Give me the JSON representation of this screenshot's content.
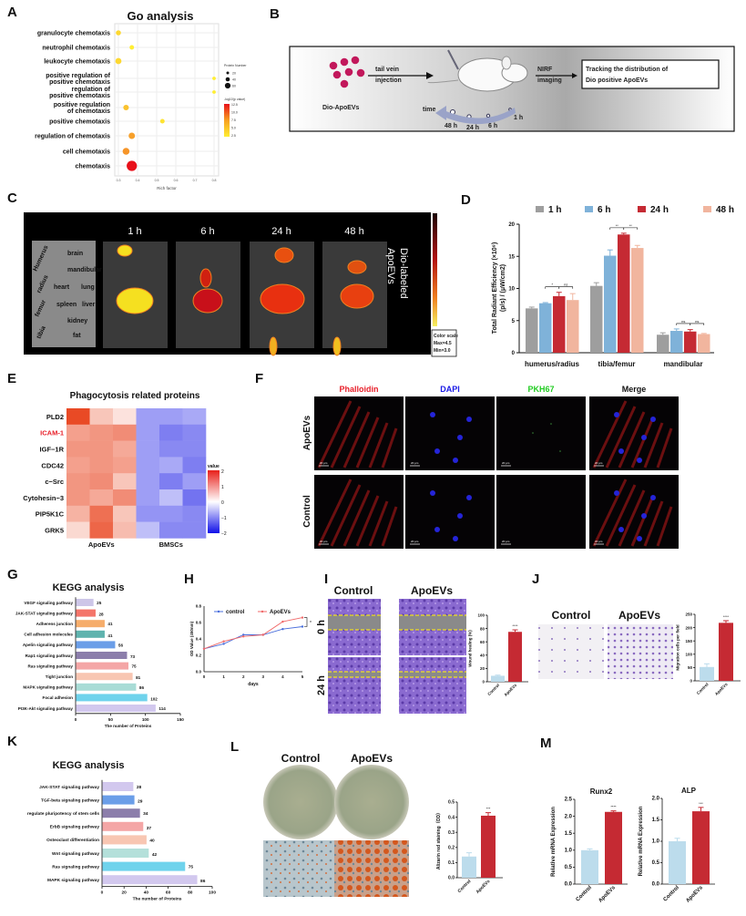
{
  "panels": {
    "A": "A",
    "B": "B",
    "C": "C",
    "D": "D",
    "E": "E",
    "F": "F",
    "G": "G",
    "H": "H",
    "I": "I",
    "J": "J",
    "K": "K",
    "L": "L",
    "M": "M"
  },
  "schematic_b": {
    "tail_vein": "tail vein",
    "injection": "injection",
    "dio_apoevs": "Dio-ApoEVs",
    "nirf": "NIRF",
    "imaging": "imaging",
    "tracking_line1": "Tracking the distribution of",
    "tracking_line2": "Dio positive ApoEVs",
    "time": "time",
    "timepoints": [
      "48 h",
      "24 h",
      "6 h",
      "1 h"
    ],
    "particle_color": "#c2185b"
  },
  "imaging_c": {
    "timepoints": [
      "1 h",
      "6 h",
      "24 h",
      "48 h"
    ],
    "organ_labels": [
      "brain",
      "mandibular",
      "heart",
      "lung",
      "spleen",
      "liver",
      "kidney",
      "fat"
    ],
    "bone_labels": [
      "Humerus",
      "radius",
      "femur",
      "tibia"
    ],
    "side_label_line1": "Dio-labeled",
    "side_label_line2": "ApoEVs",
    "color_scale": {
      "title": "Color scale",
      "max": "Max=4.5",
      "min": "Min=3.0"
    }
  },
  "confocal_f": {
    "columns": [
      {
        "label": "Phalloidin",
        "color": "#e8202a"
      },
      {
        "label": "DAPI",
        "color": "#1a1ae6"
      },
      {
        "label": "PKH67",
        "color": "#22cc22"
      },
      {
        "label": "Merge",
        "color": "#111111"
      }
    ],
    "rows": [
      "ApoEVs",
      "Control"
    ],
    "scale_bar": "20 μm"
  },
  "wound_i": {
    "columns": [
      "Control",
      "ApoEVs"
    ],
    "rows": [
      "0 h",
      "24 h"
    ]
  },
  "transwell_j": {
    "columns": [
      "Control",
      "ApoEVs"
    ]
  },
  "alizarin_l": {
    "columns": [
      "Control",
      "ApoEVs"
    ]
  },
  "chart_data": [
    {
      "id": "A",
      "type": "scatter",
      "title": "Go analysis",
      "xlabel": "Rich factor",
      "xlim": [
        0.3,
        0.8
      ],
      "xticks": [
        "0.3",
        "0.4",
        "0.5",
        "0.6",
        "0.7",
        "0.8"
      ],
      "grid": true,
      "categories": [
        "granulocyte chemotaxis",
        "neutrophil chemotaxis",
        "leukocyte chemotaxis",
        "positive regulation of|positive chemotaxis",
        "regulation of|positive chemotaxis",
        "positive regulation|of chemotaxis",
        "positive chemotaxis",
        "regulation of chemotaxis",
        "cell chemotaxis",
        "chemotaxis"
      ],
      "rich_factor": [
        0.3,
        0.37,
        0.3,
        0.8,
        0.8,
        0.34,
        0.53,
        0.37,
        0.34,
        0.37
      ],
      "protein_number": [
        22,
        18,
        30,
        10,
        10,
        26,
        18,
        32,
        36,
        62
      ],
      "neg_log10_p": [
        3.5,
        2.5,
        3.5,
        2.5,
        2.5,
        4.5,
        3.0,
        6.0,
        6.5,
        12.5
      ],
      "size_legend": {
        "title": "Protein Number",
        "values": [
          "20",
          "40",
          "60"
        ]
      },
      "color_legend": {
        "title": "-log10(p value)",
        "values": [
          "12.5",
          "10.0",
          "7.5",
          "5.0",
          "2.5"
        ],
        "low": "#ffee33",
        "high": "#e8101a"
      },
      "legend": "right"
    },
    {
      "id": "D",
      "type": "bar",
      "ylabel_line1": "Total Radiant Efficiency (×10⁸)",
      "ylabel_line2": "(p/s) / (μW/cm2)",
      "ylim": [
        0,
        20
      ],
      "yticks": [
        "0",
        "5",
        "10",
        "15",
        "20"
      ],
      "categories": [
        "humerus/radius",
        "tibia/femur",
        "mandibular"
      ],
      "series": [
        {
          "name": "1 h",
          "color": "#9e9e9e",
          "values": [
            6.9,
            10.4,
            2.8
          ],
          "err": [
            0.2,
            0.5,
            0.3
          ]
        },
        {
          "name": "6 h",
          "color": "#7fb2d9",
          "values": [
            7.7,
            15.1,
            3.4
          ],
          "err": [
            0.1,
            0.9,
            0.3
          ]
        },
        {
          "name": "24 h",
          "color": "#c52a33",
          "values": [
            8.8,
            18.4,
            3.3
          ],
          "err": [
            0.6,
            0.2,
            0.3
          ]
        },
        {
          "name": "48 h",
          "color": "#f1b59e",
          "values": [
            8.2,
            16.3,
            2.9
          ],
          "err": [
            1.0,
            0.4,
            0.1
          ]
        }
      ],
      "significance": [
        {
          "group": 0,
          "pair": [
            1,
            2
          ],
          "label": "*"
        },
        {
          "group": 0,
          "pair": [
            2,
            3
          ],
          "label": "ns"
        },
        {
          "group": 1,
          "pair": [
            1,
            2
          ],
          "label": "**"
        },
        {
          "group": 1,
          "pair": [
            2,
            3
          ],
          "label": "**"
        },
        {
          "group": 2,
          "pair": [
            1,
            2
          ],
          "label": "ns"
        },
        {
          "group": 2,
          "pair": [
            2,
            3
          ],
          "label": "ns"
        }
      ],
      "legend": "top"
    },
    {
      "id": "E",
      "type": "heatmap",
      "title": "Phagocytosis related proteins",
      "rows": [
        "PLD2",
        "ICAM-1",
        "IGF−1R",
        "CDC42",
        "c−Src",
        "Cytohesin−3",
        "PIP5K1C",
        "GRK5"
      ],
      "highlight_row": "ICAM-1",
      "highlight_color": "#e8202a",
      "column_groups": [
        "ApoEVs",
        "BMSCs"
      ],
      "values": [
        [
          1.9,
          0.6,
          0.3,
          -0.9,
          -0.9,
          -0.8
        ],
        [
          1.0,
          1.1,
          1.2,
          -0.9,
          -1.2,
          -1.1
        ],
        [
          1.1,
          1.1,
          0.9,
          -0.9,
          -1.1,
          -1.1
        ],
        [
          1.0,
          1.1,
          1.0,
          -0.9,
          -0.8,
          -1.2
        ],
        [
          1.1,
          1.2,
          0.6,
          -0.9,
          -1.2,
          -0.9
        ],
        [
          1.1,
          0.9,
          1.2,
          -0.9,
          -0.6,
          -1.3
        ],
        [
          0.8,
          1.5,
          0.6,
          -1.0,
          -1.0,
          -1.1
        ],
        [
          0.4,
          1.6,
          0.7,
          -0.6,
          -1.1,
          -1.1
        ]
      ],
      "legend_title": "value",
      "legend_ticks": [
        "2",
        "1",
        "0",
        "−1",
        "−2"
      ],
      "range": [
        -2,
        2
      ]
    },
    {
      "id": "G",
      "type": "bar",
      "orientation": "horizontal",
      "title": "KEGG analysis",
      "xlabel": "The number  of Proteins",
      "xlim": [
        0,
        150
      ],
      "xticks": [
        "0",
        "50",
        "100",
        "150"
      ],
      "categories": [
        "VEGF signaling pathway",
        "JAK-STAT signaling pathway",
        "Adherens junction",
        "Cell adhesion molecules",
        "Apelin signaling pathway",
        "Rap1 signaling pathway",
        "Ras signaling pathway",
        "Tight junction",
        "MAPK signaling pathway",
        "Focal adhesion",
        "PI3K-Akt signaling pathway"
      ],
      "values": [
        25,
        28,
        41,
        41,
        56,
        73,
        75,
        81,
        86,
        102,
        114
      ],
      "colors": [
        "#cdc6e8",
        "#f4756a",
        "#f6ad6b",
        "#5fb3ae",
        "#6b9ee8",
        "#8c7eab",
        "#f4a6a6",
        "#f8c6b2",
        "#a9dcd6",
        "#6fd3ec",
        "#d2c8ee"
      ]
    },
    {
      "id": "H",
      "type": "line",
      "xlabel": "days",
      "ylabel": "OD Value (450nm)",
      "x": [
        0,
        1,
        2,
        3,
        4,
        5
      ],
      "xlim": [
        0,
        5
      ],
      "ylim": [
        0,
        0.8
      ],
      "yticks": [
        "0.0",
        "0.2",
        "0.4",
        "0.6",
        "0.8"
      ],
      "series": [
        {
          "name": "control",
          "color": "#4a6fdc",
          "values": [
            0.28,
            0.34,
            0.45,
            0.45,
            0.52,
            0.55
          ]
        },
        {
          "name": "ApoEVs",
          "color": "#f06a6a",
          "values": [
            0.28,
            0.37,
            0.43,
            0.45,
            0.61,
            0.66
          ]
        }
      ],
      "significance": "*",
      "legend": "top"
    },
    {
      "id": "I",
      "type": "bar",
      "ylabel": "Wound healing (%)",
      "ylim": [
        0,
        100
      ],
      "yticks": [
        "0",
        "20",
        "40",
        "60",
        "80",
        "100"
      ],
      "categories": [
        "Control",
        "ApoEVs"
      ],
      "values": [
        9,
        75
      ],
      "err": [
        1,
        3
      ],
      "colors": [
        "#bcdcec",
        "#c52a33"
      ],
      "significance": "****"
    },
    {
      "id": "J",
      "type": "bar",
      "ylabel": "Migration cells per field",
      "ylim": [
        0,
        250
      ],
      "yticks": [
        "0",
        "50",
        "100",
        "150",
        "200",
        "250"
      ],
      "categories": [
        "Control",
        "ApoEVs"
      ],
      "values": [
        52,
        218
      ],
      "err": [
        12,
        8
      ],
      "colors": [
        "#bcdcec",
        "#c52a33"
      ],
      "significance": "****"
    },
    {
      "id": "K",
      "type": "bar",
      "orientation": "horizontal",
      "title": "KEGG analysis",
      "xlabel": "The number  of Proteins",
      "xlim": [
        0,
        100
      ],
      "xticks": [
        "0",
        "20",
        "40",
        "60",
        "80",
        "100"
      ],
      "categories": [
        "JAK-STAT signaling pathway",
        "TGF-beta signaling pathway",
        "regulate pluripotency of stem cells",
        "ErbB signaling pathway",
        "Osteoclast differentiation",
        "Wnt signaling pathway",
        "Ras signaling pathway",
        "MAPK signaling pathway"
      ],
      "values": [
        28,
        29,
        34,
        37,
        40,
        42,
        75,
        86
      ],
      "colors": [
        "#d2c8ee",
        "#6b9ee8",
        "#8c7eab",
        "#f4a6a6",
        "#f8c6b2",
        "#b4e0da",
        "#6fd3ec",
        "#d2c8ee"
      ]
    },
    {
      "id": "L",
      "type": "bar",
      "ylabel": "Alizarin red staining（OD）",
      "ylim": [
        0,
        0.5
      ],
      "yticks": [
        "0.0",
        "0.1",
        "0.2",
        "0.3",
        "0.4",
        "0.5"
      ],
      "categories": [
        "Control",
        "ApoEVs"
      ],
      "values": [
        0.14,
        0.41
      ],
      "err": [
        0.025,
        0.02
      ],
      "colors": [
        "#bcdcec",
        "#c52a33"
      ],
      "significance": "***"
    },
    {
      "id": "M1",
      "type": "bar",
      "title": "Runx2",
      "ylabel": "Relative mRNA Expression",
      "ylim": [
        0,
        2.5
      ],
      "yticks": [
        "0.0",
        "0.5",
        "1.0",
        "1.5",
        "2.0",
        "2.5"
      ],
      "categories": [
        "Control",
        "ApoEVs"
      ],
      "values": [
        1.0,
        2.13
      ],
      "err": [
        0.04,
        0.03
      ],
      "colors": [
        "#bcdcec",
        "#c52a33"
      ],
      "significance": "****"
    },
    {
      "id": "M2",
      "type": "bar",
      "title": "ALP",
      "ylabel": "Relative mRNA Expression",
      "ylim": [
        0,
        2.0
      ],
      "yticks": [
        "0.0",
        "0.5",
        "1.0",
        "1.5",
        "2.0"
      ],
      "categories": [
        "Control",
        "ApoEVs"
      ],
      "values": [
        1.0,
        1.7
      ],
      "err": [
        0.07,
        0.09
      ],
      "colors": [
        "#bcdcec",
        "#c52a33"
      ],
      "significance": "***"
    }
  ]
}
